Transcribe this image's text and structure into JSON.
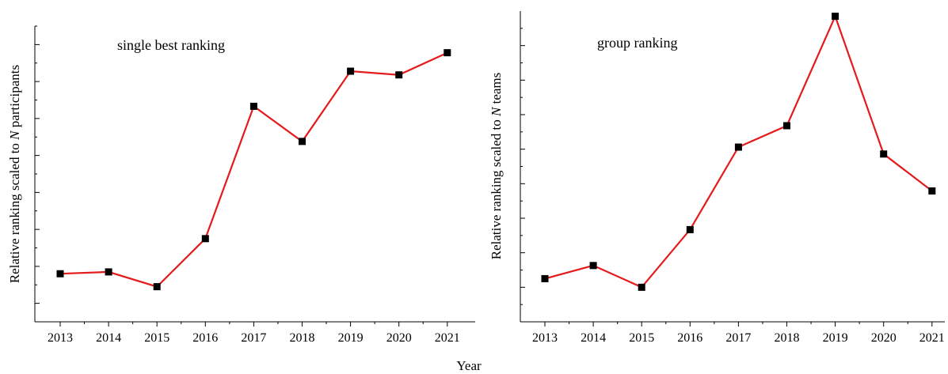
{
  "figure": {
    "xlabel": "Year"
  },
  "chart_data": [
    {
      "type": "line",
      "annotation": "single best ranking",
      "ylabel_prefix": "Relative ranking scaled to ",
      "ylabel_var": "N",
      "ylabel_suffix": " participants",
      "categories": [
        "2013",
        "2014",
        "2015",
        "2016",
        "2017",
        "2018",
        "2019",
        "2020",
        "2021"
      ],
      "values": [
        3.3,
        3.35,
        2.95,
        4.25,
        7.83,
        6.88,
        8.78,
        8.68,
        9.28
      ],
      "ylim": [
        2.0,
        10.0
      ],
      "y_major_ticks": [
        2.5,
        3.5,
        4.5,
        5.5,
        6.5,
        7.5,
        8.5,
        9.5
      ],
      "y_minor_ticks": [
        2.0,
        3.0,
        4.0,
        5.0,
        6.0,
        7.0,
        8.0,
        9.0,
        10.0
      ],
      "line_color": "#e41a1c",
      "marker_color": "#000000",
      "grid": false
    },
    {
      "type": "line",
      "annotation": "group ranking",
      "ylabel_prefix": "Relative ranking scaled to ",
      "ylabel_var": "N",
      "ylabel_suffix": " teams",
      "categories": [
        "2013",
        "2014",
        "2015",
        "2016",
        "2017",
        "2018",
        "2019",
        "2020",
        "2021"
      ],
      "values": [
        1.25,
        1.63,
        1.0,
        2.67,
        5.06,
        5.68,
        8.85,
        4.86,
        3.79
      ],
      "ylim": [
        0.0,
        9.0
      ],
      "y_major_ticks": [
        1,
        2,
        3,
        4,
        5,
        6,
        7,
        8
      ],
      "y_minor_ticks": [
        0.5,
        1.5,
        2.5,
        3.5,
        4.5,
        5.5,
        6.5,
        7.5,
        8.5
      ],
      "line_color": "#e41a1c",
      "marker_color": "#000000",
      "grid": false
    }
  ]
}
